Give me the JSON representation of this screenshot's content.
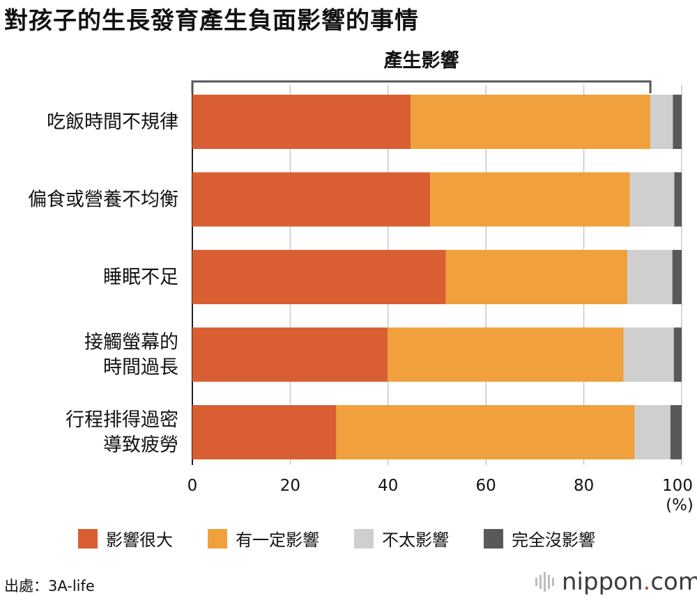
{
  "title": "對孩子的生長發育產生負面影響的事情",
  "bracket_label": "產生影響",
  "chart_data": {
    "type": "bar",
    "orientation": "horizontal",
    "stacked": true,
    "categories": [
      [
        "吃飯時間不規律"
      ],
      [
        "偏食或營養不均衡"
      ],
      [
        "睡眠不足"
      ],
      [
        "接觸螢幕的",
        "時間過長"
      ],
      [
        "行程排得過密",
        "導致疲勞"
      ]
    ],
    "series": [
      {
        "name": "影響很大",
        "color": "#d95f32",
        "values": [
          44.6,
          48.6,
          51.8,
          39.9,
          29.4
        ]
      },
      {
        "name": "有一定影響",
        "color": "#f0a03c",
        "values": [
          49.0,
          40.8,
          37.1,
          48.2,
          61.0
        ]
      },
      {
        "name": "不太影響",
        "color": "#cfcfcf",
        "values": [
          4.6,
          9.1,
          9.2,
          10.3,
          7.3
        ]
      },
      {
        "name": "完全沒影響",
        "color": "#595959",
        "values": [
          1.8,
          1.5,
          1.9,
          1.6,
          2.3
        ]
      }
    ],
    "xlim": [
      0,
      100
    ],
    "xticks": [
      "0",
      "20",
      "40",
      "60",
      "80",
      "100"
    ],
    "x_unit": "(%)",
    "grid": true,
    "legend_placement": "bottom"
  },
  "source": "出處：3A-life",
  "logo": {
    "name": "nippon",
    "dot": ".",
    "suffix": "com"
  }
}
